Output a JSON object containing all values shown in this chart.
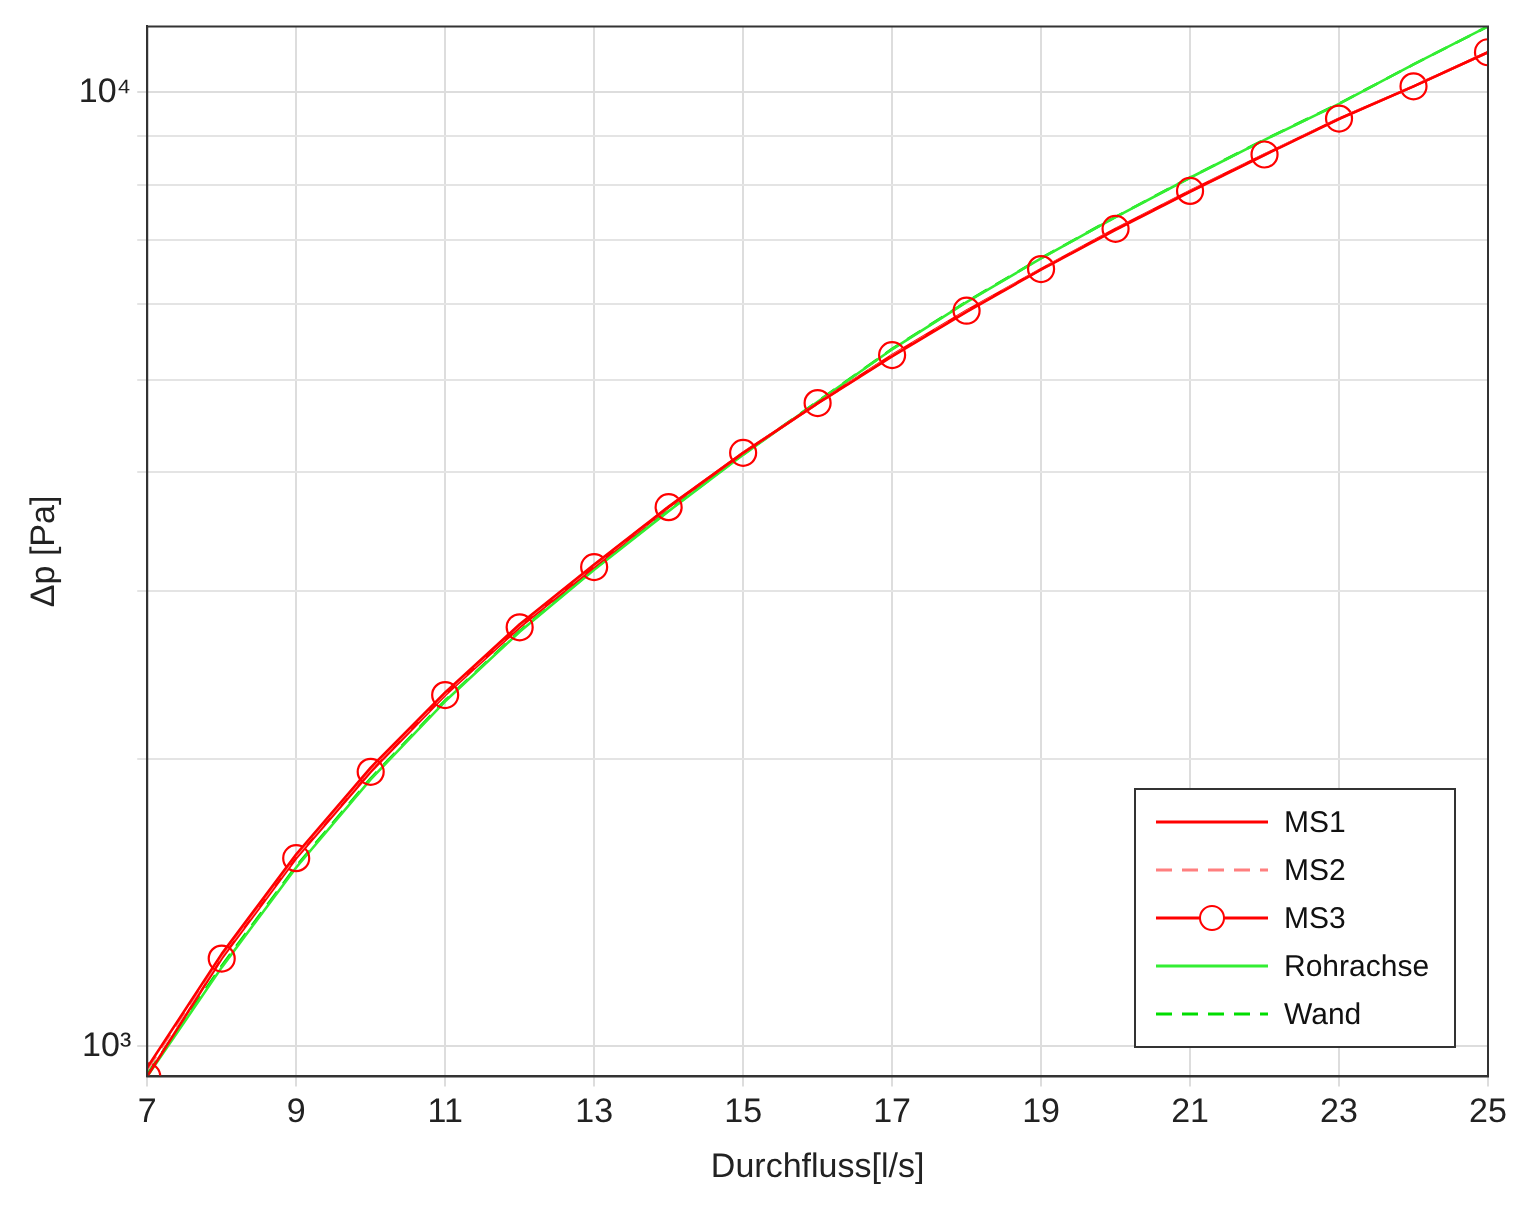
{
  "chart_data": {
    "type": "line",
    "xlabel": "Durchfluss[l/s]",
    "ylabel": "Δp [Pa]",
    "x": [
      7,
      8,
      9,
      10,
      11,
      12,
      13,
      14,
      15,
      16,
      17,
      18,
      19,
      20,
      21,
      22,
      23,
      24,
      25
    ],
    "series": [
      {
        "name": "MS1",
        "color": "#ff0000",
        "line_style": "solid",
        "marker": "none",
        "values": [
          950,
          1250,
          1590,
          1960,
          2350,
          2770,
          3200,
          3680,
          4190,
          4720,
          5290,
          5890,
          6520,
          7180,
          7870,
          8600,
          9380,
          10150,
          11020
        ]
      },
      {
        "name": "MS2",
        "color": "#ff7f7f",
        "line_style": "dashed",
        "marker": "none",
        "values": [
          945,
          1245,
          1585,
          1955,
          2345,
          2765,
          3195,
          3680,
          4190,
          4720,
          5295,
          5895,
          6525,
          7185,
          7875,
          8605,
          9385,
          10155,
          11020
        ]
      },
      {
        "name": "MS3",
        "color": "#ff0000",
        "line_style": "solid",
        "marker": "circle",
        "values": [
          930,
          1236,
          1575,
          1940,
          2335,
          2750,
          3180,
          3675,
          4190,
          4725,
          5305,
          5905,
          6530,
          7195,
          7885,
          8610,
          9390,
          10150,
          11020
        ]
      },
      {
        "name": "Rohrachse",
        "color": "#33ee33",
        "line_style": "solid",
        "marker": "none",
        "values": [
          930,
          1210,
          1540,
          1905,
          2300,
          2720,
          3160,
          3640,
          4170,
          4740,
          5380,
          6030,
          6700,
          7400,
          8140,
          8920,
          9730,
          10700,
          11730
        ]
      },
      {
        "name": "Wand",
        "color": "#00dd00",
        "line_style": "dashed",
        "marker": "none",
        "values": [
          935,
          1215,
          1545,
          1910,
          2305,
          2725,
          3165,
          3645,
          4175,
          4745,
          5385,
          6035,
          6705,
          7405,
          8145,
          8925,
          9735,
          10700,
          11730
        ]
      }
    ],
    "xlim": [
      7,
      25
    ],
    "xticks": [
      7,
      9,
      11,
      13,
      15,
      17,
      19,
      21,
      23,
      25
    ],
    "ylim": [
      930,
      11730
    ],
    "yticks": [
      {
        "value": 1000,
        "label": "10³"
      },
      {
        "value": 2000,
        "label": null
      },
      {
        "value": 3000,
        "label": null
      },
      {
        "value": 4000,
        "label": null
      },
      {
        "value": 5000,
        "label": null
      },
      {
        "value": 6000,
        "label": null
      },
      {
        "value": 7000,
        "label": null
      },
      {
        "value": 8000,
        "label": null
      },
      {
        "value": 9000,
        "label": null
      },
      {
        "value": 10000,
        "label": "10⁴"
      }
    ],
    "log": "y",
    "grid": true,
    "legend": "bottom right"
  }
}
